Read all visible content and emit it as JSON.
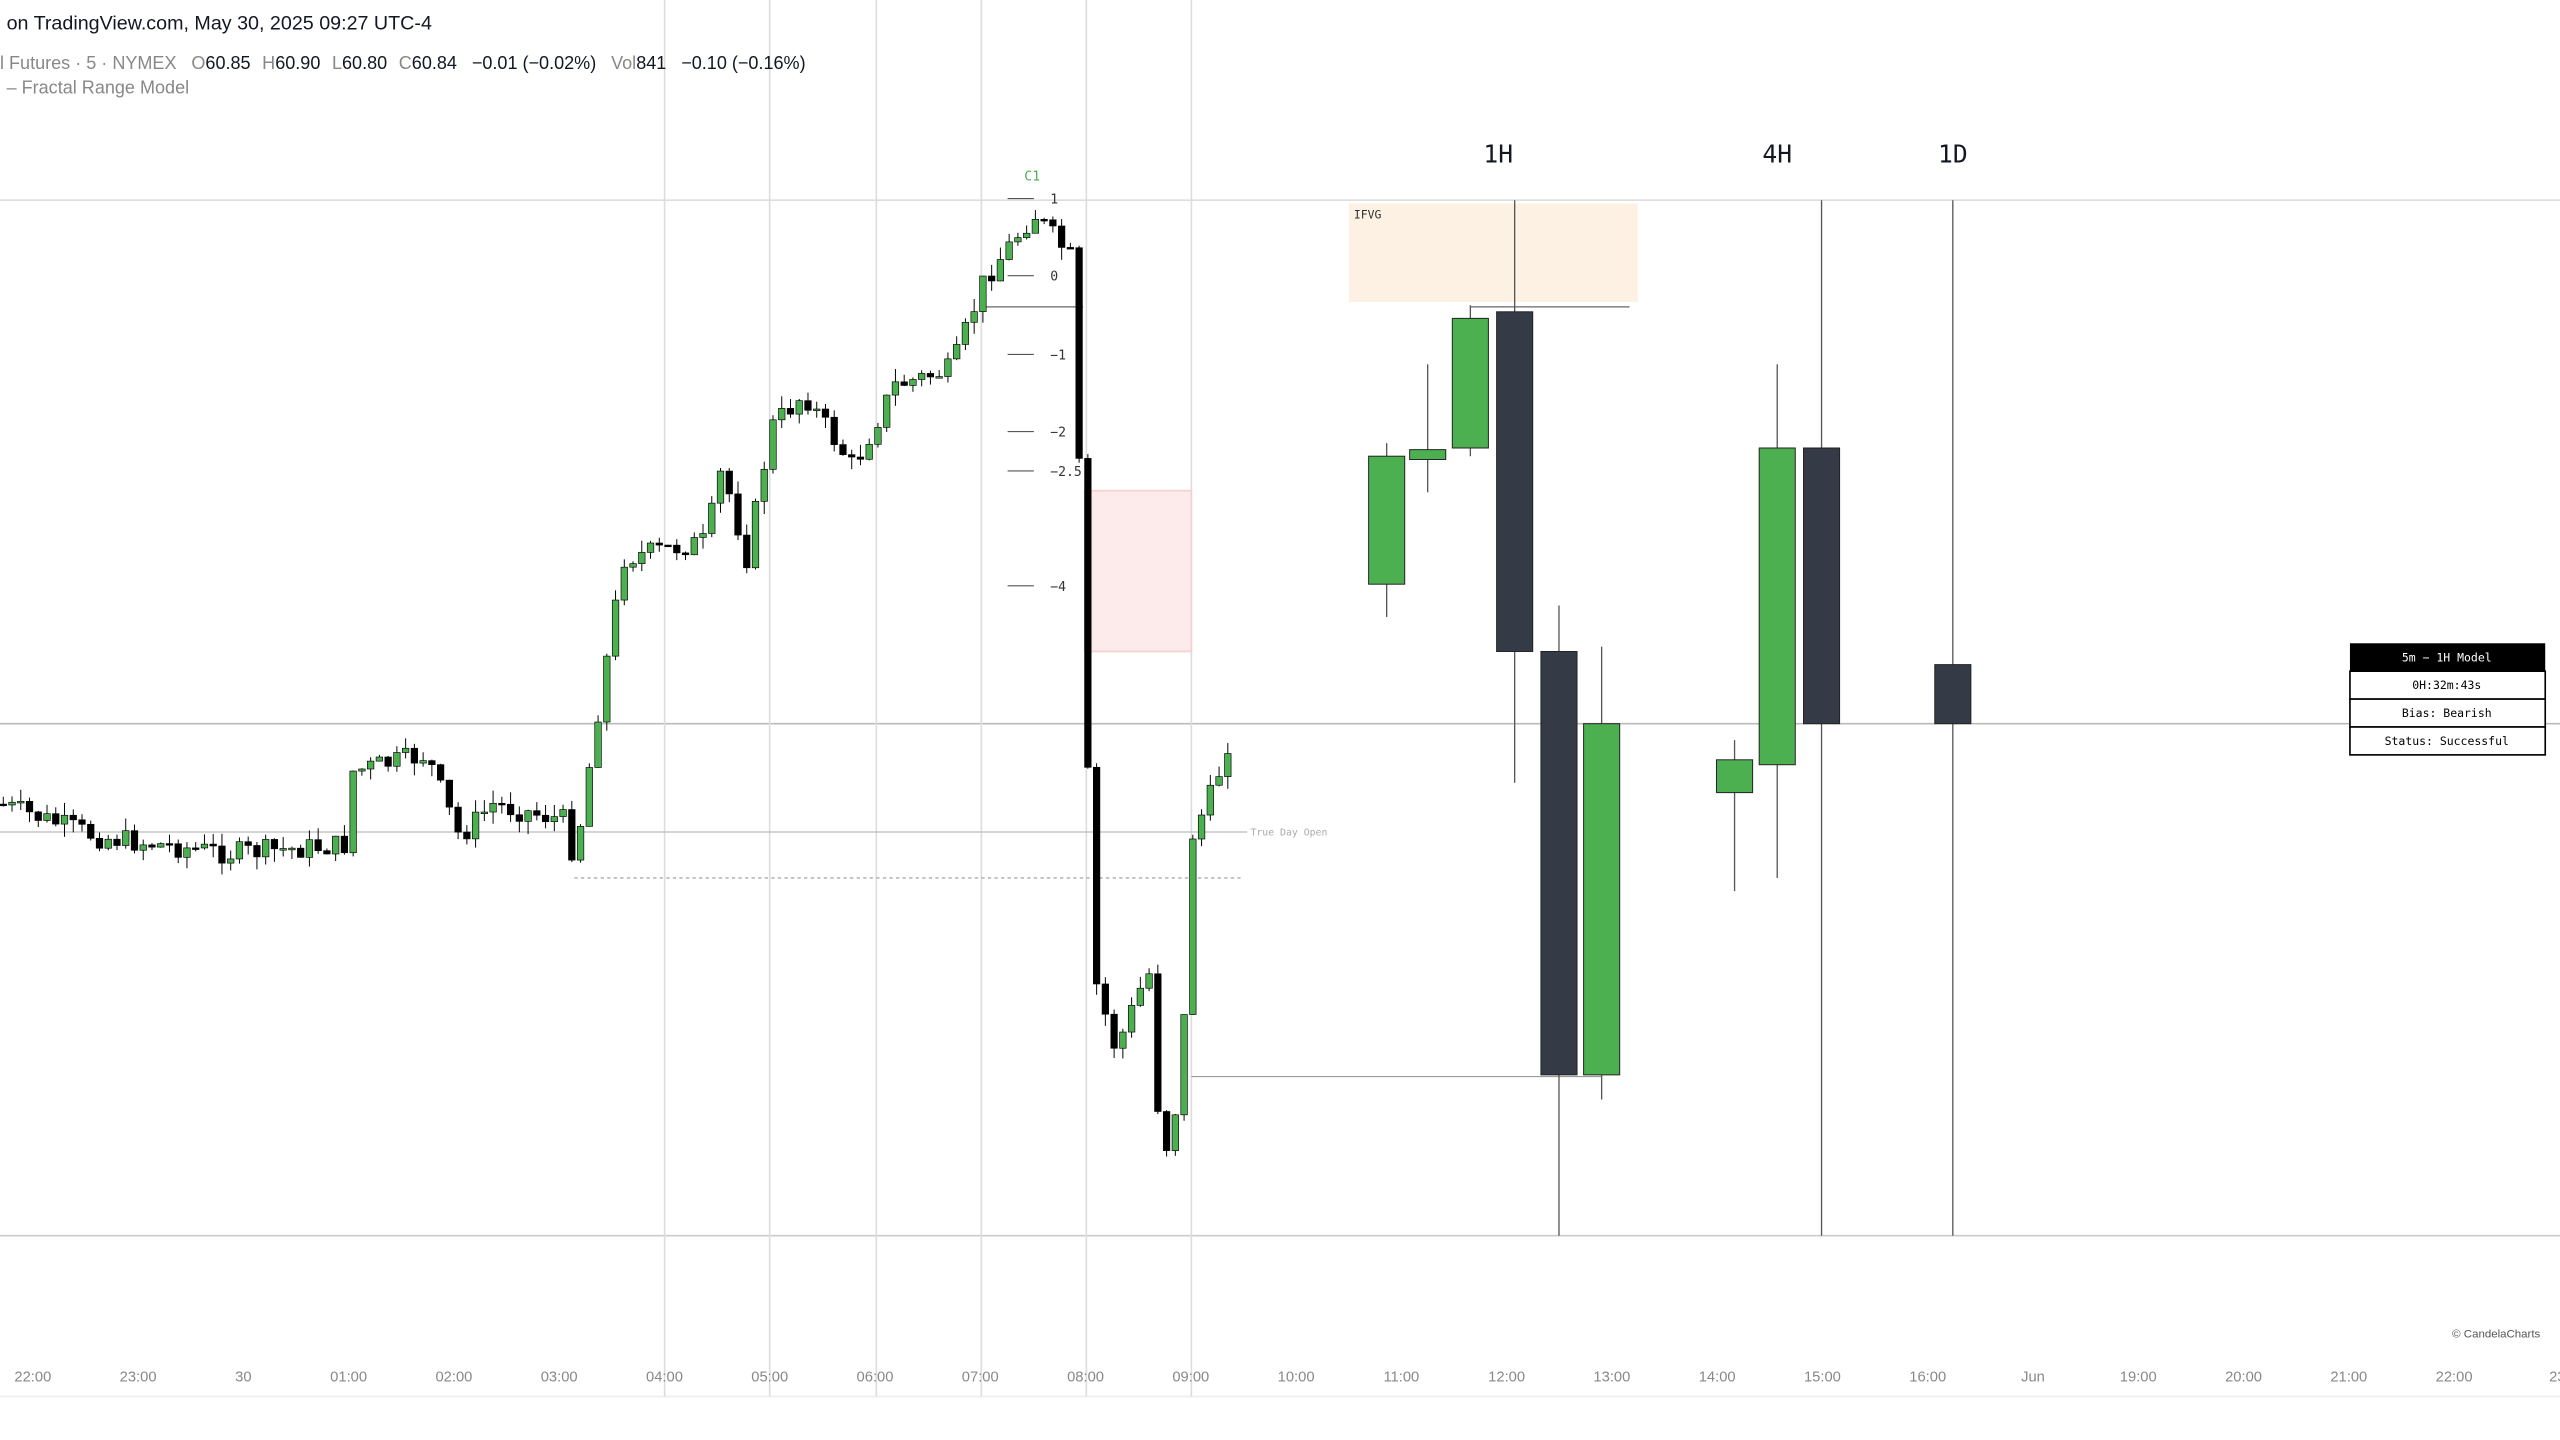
{
  "header": {
    "source": "on TradingView.com, May 30, 2025 09:27 UTC-4"
  },
  "legend": {
    "symbol": "l Futures · 5 · NYMEX",
    "o_label": "O",
    "o": "60.85",
    "h_label": "H",
    "h": "60.90",
    "l_label": "L",
    "l": "60.80",
    "c_label": "C",
    "c": "60.84",
    "change": "−0.01 (−0.02%)",
    "vol_label": "Vol",
    "vol": "841",
    "vol_change": "−0.10 (−0.16%)"
  },
  "indicator": "– Fractal Range Model",
  "annotations": {
    "c1": "C1",
    "levels": [
      "1",
      "0",
      "−1",
      "−2",
      "−2.5",
      "−4"
    ],
    "ifvg": "IFVG",
    "true_day_open": "True Day Open"
  },
  "timeframes": [
    "1H",
    "4H",
    "1D"
  ],
  "info_box": [
    "5m − 1H Model",
    "0H:32m:43s",
    "Bias: Bearish",
    "Status: Successful"
  ],
  "watermark": "© CandelaCharts",
  "time_axis": [
    "22:00",
    "23:00",
    "30",
    "01:00",
    "02:00",
    "03:00",
    "04:00",
    "05:00",
    "06:00",
    "07:00",
    "08:00",
    "09:00",
    "10:00",
    "11:00",
    "12:00",
    "13:00",
    "14:00",
    "15:00",
    "16:00",
    "Jun",
    "19:00",
    "20:00",
    "21:00",
    "22:00",
    "23:"
  ]
}
